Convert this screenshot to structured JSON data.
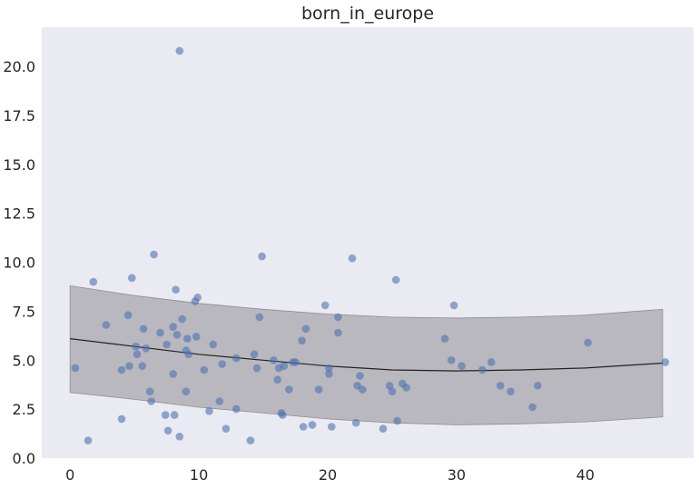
{
  "chart_data": {
    "type": "scatter",
    "title": "born_in_europe",
    "xlabel": "",
    "ylabel": "",
    "xlim": [
      -2.2,
      48.4
    ],
    "ylim": [
      0,
      22
    ],
    "xticks": [
      0,
      10,
      20,
      30,
      40
    ],
    "xtick_labels": [
      "0",
      "10",
      "20",
      "30",
      "40"
    ],
    "yticks": [
      0,
      2.5,
      5,
      7.5,
      10,
      12.5,
      15,
      17.5,
      20
    ],
    "ytick_labels": [
      "0.0",
      "2.5",
      "5.0",
      "7.5",
      "10.0",
      "12.5",
      "15.0",
      "17.5",
      "20.0"
    ],
    "grid": false,
    "colors": {
      "background": "#eaeaf2",
      "points": "#4c72b0",
      "band": "#b2afb6",
      "line": "#222222"
    },
    "points": [
      {
        "x": 0.4,
        "y": 4.6
      },
      {
        "x": 1.4,
        "y": 0.9
      },
      {
        "x": 1.8,
        "y": 9.0
      },
      {
        "x": 2.8,
        "y": 6.8
      },
      {
        "x": 4.0,
        "y": 4.5
      },
      {
        "x": 4.0,
        "y": 2.0
      },
      {
        "x": 4.5,
        "y": 7.3
      },
      {
        "x": 4.6,
        "y": 4.7
      },
      {
        "x": 4.8,
        "y": 9.2
      },
      {
        "x": 5.1,
        "y": 5.7
      },
      {
        "x": 5.2,
        "y": 5.3
      },
      {
        "x": 5.6,
        "y": 4.7
      },
      {
        "x": 5.7,
        "y": 6.6
      },
      {
        "x": 5.9,
        "y": 5.6
      },
      {
        "x": 6.2,
        "y": 3.4
      },
      {
        "x": 6.3,
        "y": 2.9
      },
      {
        "x": 6.5,
        "y": 10.4
      },
      {
        "x": 7.0,
        "y": 6.4
      },
      {
        "x": 7.4,
        "y": 2.2
      },
      {
        "x": 7.5,
        "y": 5.8
      },
      {
        "x": 7.6,
        "y": 1.4
      },
      {
        "x": 8.0,
        "y": 6.7
      },
      {
        "x": 8.0,
        "y": 4.3
      },
      {
        "x": 8.1,
        "y": 2.2
      },
      {
        "x": 8.2,
        "y": 8.6
      },
      {
        "x": 8.3,
        "y": 6.3
      },
      {
        "x": 8.5,
        "y": 20.8
      },
      {
        "x": 8.5,
        "y": 1.1
      },
      {
        "x": 8.7,
        "y": 7.1
      },
      {
        "x": 9.0,
        "y": 5.5
      },
      {
        "x": 9.0,
        "y": 3.4
      },
      {
        "x": 9.1,
        "y": 6.1
      },
      {
        "x": 9.2,
        "y": 5.3
      },
      {
        "x": 9.7,
        "y": 8.0
      },
      {
        "x": 9.8,
        "y": 6.2
      },
      {
        "x": 9.9,
        "y": 8.2
      },
      {
        "x": 10.4,
        "y": 4.5
      },
      {
        "x": 10.8,
        "y": 2.4
      },
      {
        "x": 11.1,
        "y": 5.8
      },
      {
        "x": 11.6,
        "y": 2.9
      },
      {
        "x": 11.8,
        "y": 4.8
      },
      {
        "x": 12.1,
        "y": 1.5
      },
      {
        "x": 12.9,
        "y": 5.1
      },
      {
        "x": 12.9,
        "y": 2.5
      },
      {
        "x": 14.0,
        "y": 0.9
      },
      {
        "x": 14.3,
        "y": 5.3
      },
      {
        "x": 14.5,
        "y": 4.6
      },
      {
        "x": 14.7,
        "y": 7.2
      },
      {
        "x": 14.9,
        "y": 10.3
      },
      {
        "x": 15.8,
        "y": 5.0
      },
      {
        "x": 16.1,
        "y": 4.0
      },
      {
        "x": 16.2,
        "y": 4.6
      },
      {
        "x": 16.4,
        "y": 2.3
      },
      {
        "x": 16.5,
        "y": 2.2
      },
      {
        "x": 16.6,
        "y": 4.7
      },
      {
        "x": 17.0,
        "y": 3.5
      },
      {
        "x": 17.3,
        "y": 4.9
      },
      {
        "x": 17.5,
        "y": 4.9
      },
      {
        "x": 18.0,
        "y": 6.0
      },
      {
        "x": 18.1,
        "y": 1.6
      },
      {
        "x": 18.3,
        "y": 6.6
      },
      {
        "x": 18.8,
        "y": 1.7
      },
      {
        "x": 19.3,
        "y": 3.5
      },
      {
        "x": 19.8,
        "y": 7.8
      },
      {
        "x": 20.1,
        "y": 4.6
      },
      {
        "x": 20.1,
        "y": 4.3
      },
      {
        "x": 20.3,
        "y": 1.6
      },
      {
        "x": 20.8,
        "y": 7.2
      },
      {
        "x": 20.8,
        "y": 6.4
      },
      {
        "x": 21.9,
        "y": 10.2
      },
      {
        "x": 22.2,
        "y": 1.8
      },
      {
        "x": 22.3,
        "y": 3.7
      },
      {
        "x": 22.5,
        "y": 4.2
      },
      {
        "x": 22.7,
        "y": 3.5
      },
      {
        "x": 24.3,
        "y": 1.5
      },
      {
        "x": 24.8,
        "y": 3.7
      },
      {
        "x": 25.0,
        "y": 3.4
      },
      {
        "x": 25.3,
        "y": 9.1
      },
      {
        "x": 25.4,
        "y": 1.9
      },
      {
        "x": 25.8,
        "y": 3.8
      },
      {
        "x": 26.1,
        "y": 3.6
      },
      {
        "x": 29.1,
        "y": 6.1
      },
      {
        "x": 29.6,
        "y": 5.0
      },
      {
        "x": 29.8,
        "y": 7.8
      },
      {
        "x": 30.4,
        "y": 4.7
      },
      {
        "x": 32.0,
        "y": 4.5
      },
      {
        "x": 32.7,
        "y": 4.9
      },
      {
        "x": 33.4,
        "y": 3.7
      },
      {
        "x": 34.2,
        "y": 3.4
      },
      {
        "x": 35.9,
        "y": 2.6
      },
      {
        "x": 36.3,
        "y": 3.7
      },
      {
        "x": 40.2,
        "y": 5.9
      },
      {
        "x": 46.2,
        "y": 4.9
      }
    ],
    "fit": {
      "x": [
        0,
        5,
        10,
        15,
        20,
        25,
        30,
        35,
        40,
        46
      ],
      "y": [
        6.1,
        5.7,
        5.3,
        5.0,
        4.7,
        4.5,
        4.45,
        4.5,
        4.6,
        4.85
      ]
    },
    "band": {
      "x": [
        0,
        5,
        10,
        15,
        20,
        25,
        30,
        35,
        40,
        46
      ],
      "lower": [
        3.35,
        3.0,
        2.6,
        2.3,
        2.0,
        1.8,
        1.7,
        1.75,
        1.85,
        2.1
      ],
      "upper": [
        8.8,
        8.3,
        7.9,
        7.6,
        7.35,
        7.2,
        7.15,
        7.2,
        7.3,
        7.6
      ]
    }
  }
}
